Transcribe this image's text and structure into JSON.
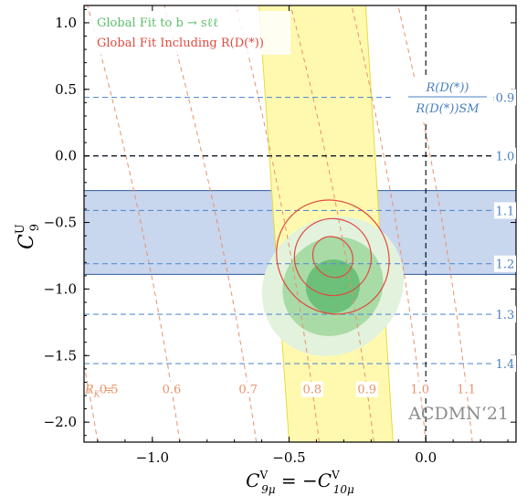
{
  "chart_data": {
    "type": "contour",
    "xlabel_main": "C",
    "xlabel_main_sup": "V",
    "xlabel_main_sub": "9μ",
    "xlabel_eq": " = −",
    "xlabel_rhs": "C",
    "xlabel_rhs_sup": "V",
    "xlabel_rhs_sub": "10μ",
    "ylabel_main": "C",
    "ylabel_sup": "U",
    "ylabel_sub": "9",
    "xlim": [
      -1.25,
      0.33
    ],
    "ylim": [
      -2.15,
      1.13
    ],
    "xticks": [
      -1.0,
      -0.5,
      0.0
    ],
    "xtick_labels": [
      "−1.0",
      "−0.5",
      "0.0"
    ],
    "yticks": [
      1.0,
      0.5,
      0.0,
      -0.5,
      -1.0,
      -1.5,
      -2.0
    ],
    "ytick_labels": [
      "1.0",
      "0.5",
      "0.0",
      "−0.5",
      "−1.0",
      "−1.5",
      "−2.0"
    ],
    "legend": {
      "placement": "top-left",
      "entries": [
        {
          "text": "Global Fit to b → sℓℓ",
          "color": "#5cbf6b"
        },
        {
          "text": "Global Fit Including R(D(*))",
          "color": "#e04a3f"
        }
      ]
    },
    "ratio_label_num": "R(D(*))",
    "ratio_label_den": "R(D(*))SM",
    "rd_lines": [
      {
        "y": 0.44,
        "label": "0.9"
      },
      {
        "y": 0.0,
        "label": "1.0"
      },
      {
        "y": -0.41,
        "label": "1.1"
      },
      {
        "y": -0.81,
        "label": "1.2"
      },
      {
        "y": -1.19,
        "label": "1.3"
      },
      {
        "y": -1.56,
        "label": "1.4"
      }
    ],
    "rd_band": {
      "y_range": [
        -0.89,
        -0.26
      ],
      "color": "#c8d6ee"
    },
    "rk_prefix": "R",
    "rk_prefix_sub": "K",
    "rk_eq": " = ",
    "rk_contours": [
      {
        "x_at_bottom": -1.2,
        "slope": -0.08,
        "label": "0.5"
      },
      {
        "x_at_bottom": -0.9,
        "slope": -0.07,
        "label": "0.6"
      },
      {
        "x_at_bottom": -0.62,
        "slope": -0.07,
        "label": "0.7"
      },
      {
        "x_at_bottom": -0.39,
        "slope": -0.06,
        "label": "0.8"
      },
      {
        "x_at_bottom": -0.19,
        "slope": -0.06,
        "label": "0.9"
      },
      {
        "x_at_bottom": 0.0,
        "slope": -0.05,
        "label": "1.0"
      },
      {
        "x_at_bottom": 0.17,
        "slope": -0.05,
        "label": "1.1"
      }
    ],
    "rk_band": {
      "bottom": [
        -0.5,
        -0.12
      ],
      "top": [
        -0.61,
        -0.22
      ],
      "color": "#fff9b0"
    },
    "fit_bsll": {
      "center": [
        -0.34,
        -0.98
      ],
      "rx": [
        0.1,
        0.19,
        0.27
      ],
      "ry": [
        0.2,
        0.36,
        0.5
      ],
      "angle_deg": -40,
      "colors": [
        "#6cc07a",
        "#a9dba7",
        "#e2f2dc"
      ]
    },
    "fit_rd": {
      "center": [
        -0.34,
        -0.76
      ],
      "rx": [
        0.07,
        0.14,
        0.2
      ],
      "ry": [
        0.16,
        0.29,
        0.44
      ],
      "angle_deg": -40,
      "color": "#e04a3f"
    },
    "crosshair": {
      "x": 0.0,
      "y": 0.0
    },
    "watermark": "ACDMN‘21"
  }
}
